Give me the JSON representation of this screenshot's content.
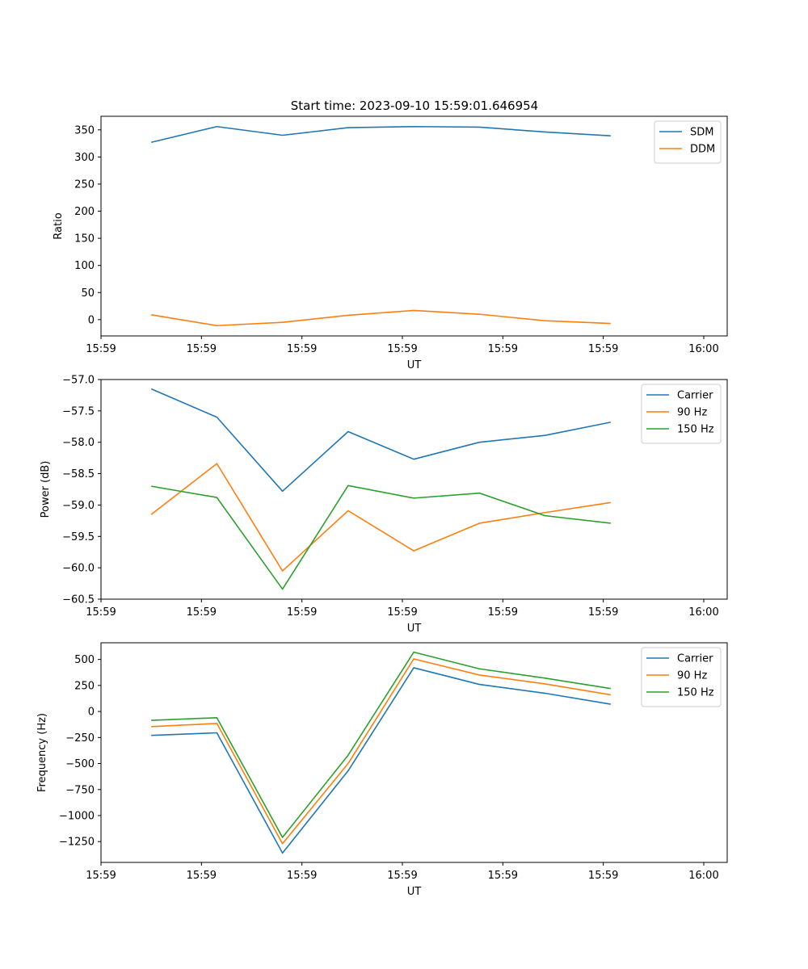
{
  "chart_data": [
    {
      "type": "line",
      "title": "Start time: 2023-09-10 15:59:01.646954",
      "xlabel": "UT",
      "ylabel": "Ratio",
      "xlim": [
        0,
        9.35
      ],
      "ylim": [
        -30,
        375
      ],
      "xtick_positions": [
        0,
        1.5,
        3,
        4.5,
        6,
        7.5,
        9
      ],
      "xtick_labels": [
        "15:59",
        "15:59",
        "15:59",
        "15:59",
        "15:59",
        "15:59",
        "16:00"
      ],
      "yticks": [
        0,
        50,
        100,
        150,
        200,
        250,
        300,
        350
      ],
      "ytick_labels": [
        "0",
        "50",
        "100",
        "150",
        "200",
        "250",
        "300",
        "350"
      ],
      "legend_position": "top-right",
      "x": [
        0.75,
        1.73,
        2.71,
        3.69,
        4.67,
        5.65,
        6.63,
        7.61
      ],
      "series": [
        {
          "name": "SDM",
          "color": "#1f77b4",
          "values": [
            327,
            356,
            340,
            354,
            356,
            355,
            346,
            339
          ]
        },
        {
          "name": "DDM",
          "color": "#ff7f0e",
          "values": [
            9,
            -11,
            -5,
            8,
            17,
            10,
            -2,
            -7
          ]
        }
      ]
    },
    {
      "type": "line",
      "title": "",
      "xlabel": "UT",
      "ylabel": "Power (dB)",
      "xlim": [
        0,
        9.35
      ],
      "ylim": [
        -60.5,
        -57.0
      ],
      "xtick_positions": [
        0,
        1.5,
        3,
        4.5,
        6,
        7.5,
        9
      ],
      "xtick_labels": [
        "15:59",
        "15:59",
        "15:59",
        "15:59",
        "15:59",
        "15:59",
        "16:00"
      ],
      "yticks": [
        -60.5,
        -60.0,
        -59.5,
        -59.0,
        -58.5,
        -58.0,
        -57.5,
        -57.0
      ],
      "ytick_labels": [
        "−60.5",
        "−60.0",
        "−59.5",
        "−59.0",
        "−58.5",
        "−58.0",
        "−57.5",
        "−57.0"
      ],
      "legend_position": "top-right",
      "x": [
        0.75,
        1.73,
        2.71,
        3.69,
        4.67,
        5.65,
        6.63,
        7.61
      ],
      "series": [
        {
          "name": "Carrier",
          "color": "#1f77b4",
          "values": [
            -57.15,
            -57.6,
            -58.78,
            -57.83,
            -58.27,
            -58.0,
            -57.89,
            -57.68
          ]
        },
        {
          "name": "90 Hz",
          "color": "#ff7f0e",
          "values": [
            -59.15,
            -58.34,
            -60.05,
            -59.09,
            -59.73,
            -59.29,
            -59.12,
            -58.96
          ]
        },
        {
          "name": "150 Hz",
          "color": "#2ca02c",
          "values": [
            -58.7,
            -58.88,
            -60.34,
            -58.69,
            -58.89,
            -58.81,
            -59.17,
            -59.29
          ]
        }
      ]
    },
    {
      "type": "line",
      "title": "",
      "xlabel": "UT",
      "ylabel": "Frequency (Hz)",
      "xlim": [
        0,
        9.35
      ],
      "ylim": [
        -1450,
        660
      ],
      "xtick_positions": [
        0,
        1.5,
        3,
        4.5,
        6,
        7.5,
        9
      ],
      "xtick_labels": [
        "15:59",
        "15:59",
        "15:59",
        "15:59",
        "15:59",
        "15:59",
        "16:00"
      ],
      "yticks": [
        -1250,
        -1000,
        -750,
        -500,
        -250,
        0,
        250,
        500
      ],
      "ytick_labels": [
        "−1250",
        "−1000",
        "−750",
        "−500",
        "−250",
        "0",
        "250",
        "500"
      ],
      "legend_position": "top-right",
      "x": [
        0.75,
        1.73,
        2.71,
        3.69,
        4.67,
        5.65,
        6.63,
        7.61
      ],
      "series": [
        {
          "name": "Carrier",
          "color": "#1f77b4",
          "values": [
            -230,
            -205,
            -1360,
            -570,
            420,
            260,
            175,
            70
          ]
        },
        {
          "name": "90 Hz",
          "color": "#ff7f0e",
          "values": [
            -145,
            -115,
            -1270,
            -500,
            505,
            350,
            265,
            160
          ]
        },
        {
          "name": "150 Hz",
          "color": "#2ca02c",
          "values": [
            -85,
            -60,
            -1210,
            -420,
            570,
            410,
            320,
            220
          ]
        }
      ]
    }
  ]
}
